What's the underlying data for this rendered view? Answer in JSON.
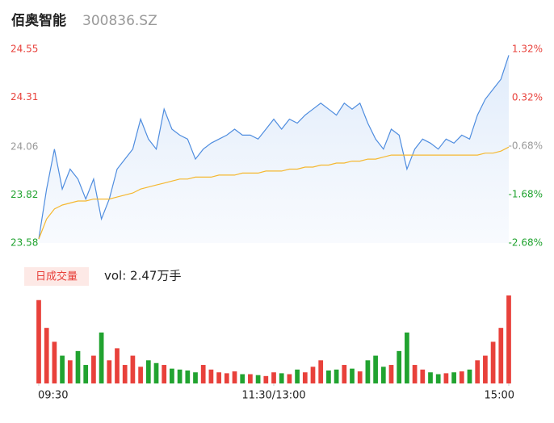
{
  "chart_data": {
    "type": "line",
    "title": "佰奥智能",
    "code": "300836.SZ",
    "ylim": [
      23.58,
      24.55
    ],
    "yticks": [
      24.55,
      24.31,
      24.06,
      23.82,
      23.58
    ],
    "y2lim": [
      -2.68,
      1.32
    ],
    "y2ticks": [
      {
        "value": 1.32,
        "label": "1.32%"
      },
      {
        "value": 0.32,
        "label": "0.32%"
      },
      {
        "value": -0.68,
        "label": "-0.68%"
      },
      {
        "value": -1.68,
        "label": "-1.68%"
      },
      {
        "value": -2.68,
        "label": "-2.68%"
      }
    ],
    "tick_colors": [
      "#e8413b",
      "#e8413b",
      "#999999",
      "#21a330",
      "#21a330"
    ],
    "xlim": [
      0,
      60
    ],
    "xticks": [
      {
        "value": 0,
        "label": "09:30"
      },
      {
        "value": 30,
        "label": "11:30/13:00"
      },
      {
        "value": 60,
        "label": "15:00"
      }
    ],
    "series": [
      {
        "name": "price",
        "color": "#4f8ddf",
        "values": [
          23.6,
          23.85,
          24.05,
          23.85,
          23.95,
          23.9,
          23.8,
          23.9,
          23.7,
          23.8,
          23.95,
          24.0,
          24.05,
          24.2,
          24.1,
          24.05,
          24.25,
          24.15,
          24.12,
          24.1,
          24.0,
          24.05,
          24.08,
          24.1,
          24.12,
          24.15,
          24.12,
          24.12,
          24.1,
          24.15,
          24.2,
          24.15,
          24.2,
          24.18,
          24.22,
          24.25,
          24.28,
          24.25,
          24.22,
          24.28,
          24.25,
          24.28,
          24.18,
          24.1,
          24.05,
          24.15,
          24.12,
          23.95,
          24.05,
          24.1,
          24.08,
          24.05,
          24.1,
          24.08,
          24.12,
          24.1,
          24.22,
          24.3,
          24.35,
          24.4,
          24.52
        ]
      },
      {
        "name": "avg",
        "color": "#f5b830",
        "values": [
          23.6,
          23.7,
          23.75,
          23.77,
          23.78,
          23.79,
          23.79,
          23.8,
          23.8,
          23.8,
          23.81,
          23.82,
          23.83,
          23.85,
          23.86,
          23.87,
          23.88,
          23.89,
          23.9,
          23.9,
          23.91,
          23.91,
          23.91,
          23.92,
          23.92,
          23.92,
          23.93,
          23.93,
          23.93,
          23.94,
          23.94,
          23.94,
          23.95,
          23.95,
          23.96,
          23.96,
          23.97,
          23.97,
          23.98,
          23.98,
          23.99,
          23.99,
          24.0,
          24.0,
          24.01,
          24.02,
          24.02,
          24.02,
          24.02,
          24.02,
          24.02,
          24.02,
          24.02,
          24.02,
          24.02,
          24.02,
          24.02,
          24.03,
          24.03,
          24.04,
          24.06
        ]
      }
    ],
    "volume_button": "日成交量",
    "volume_label": "vol: 2.47万手",
    "volume": {
      "up_color": "#e8413b",
      "down_color": "#21a330",
      "values": [
        900,
        600,
        450,
        300,
        250,
        350,
        200,
        300,
        550,
        250,
        380,
        200,
        300,
        180,
        250,
        220,
        200,
        160,
        150,
        140,
        120,
        200,
        150,
        120,
        110,
        130,
        100,
        100,
        90,
        80,
        120,
        110,
        100,
        150,
        120,
        180,
        250,
        140,
        150,
        200,
        160,
        130,
        250,
        300,
        180,
        200,
        350,
        550,
        200,
        150,
        120,
        100,
        110,
        120,
        130,
        150,
        250,
        300,
        450,
        600,
        950
      ]
    }
  }
}
